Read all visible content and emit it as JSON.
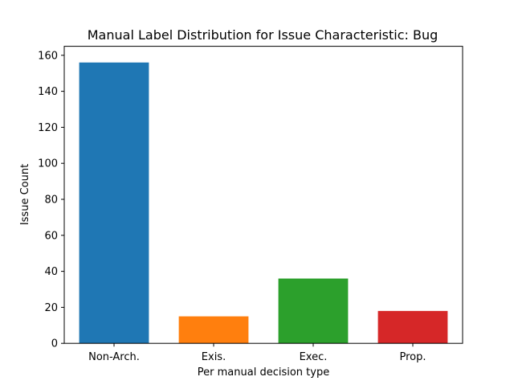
{
  "chart_data": {
    "type": "bar",
    "title": "Manual Label Distribution for Issue Characteristic: Bug",
    "xlabel": "Per manual decision type",
    "ylabel": "Issue Count",
    "categories": [
      "Non-Arch.",
      "Exis.",
      "Exec.",
      "Prop."
    ],
    "values": [
      156,
      15,
      36,
      18
    ],
    "colors": [
      "#1f77b4",
      "#ff7f0e",
      "#2ca02c",
      "#d62728"
    ],
    "ylim": [
      0,
      165
    ],
    "yticks": [
      0,
      20,
      40,
      60,
      80,
      100,
      120,
      140,
      160
    ],
    "grid": false,
    "legend": "none"
  }
}
